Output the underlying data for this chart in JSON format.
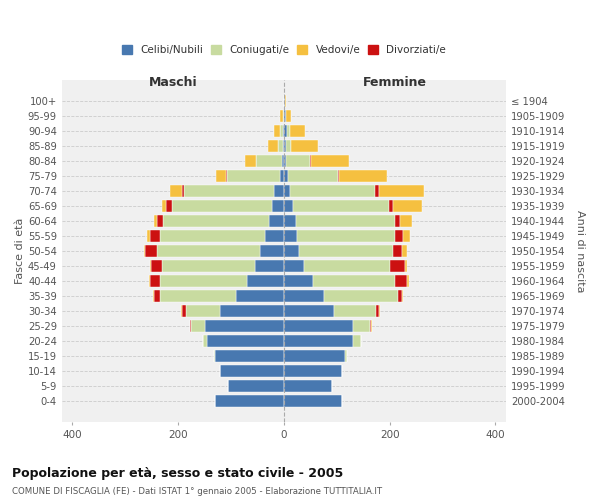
{
  "age_groups": [
    "0-4",
    "5-9",
    "10-14",
    "15-19",
    "20-24",
    "25-29",
    "30-34",
    "35-39",
    "40-44",
    "45-49",
    "50-54",
    "55-59",
    "60-64",
    "65-69",
    "70-74",
    "75-79",
    "80-84",
    "85-89",
    "90-94",
    "95-99",
    "100+"
  ],
  "birth_years": [
    "2000-2004",
    "1995-1999",
    "1990-1994",
    "1985-1989",
    "1980-1984",
    "1975-1979",
    "1970-1974",
    "1965-1969",
    "1960-1964",
    "1955-1959",
    "1950-1954",
    "1945-1949",
    "1940-1944",
    "1935-1939",
    "1930-1934",
    "1925-1929",
    "1920-1924",
    "1915-1919",
    "1910-1914",
    "1905-1909",
    "≤ 1904"
  ],
  "colors": {
    "celibi": "#4878b0",
    "coniugati": "#c8dba0",
    "vedovi": "#f5c040",
    "divorziati": "#cc1111"
  },
  "maschi": {
    "celibi": [
      130,
      105,
      120,
      130,
      145,
      150,
      120,
      90,
      70,
      55,
      45,
      35,
      28,
      22,
      18,
      8,
      4,
      2,
      2,
      0,
      0
    ],
    "coniugati": [
      0,
      0,
      0,
      2,
      8,
      25,
      65,
      145,
      165,
      175,
      195,
      200,
      200,
      190,
      170,
      100,
      48,
      10,
      5,
      2,
      0
    ],
    "vedovi": [
      0,
      0,
      0,
      0,
      0,
      0,
      2,
      2,
      2,
      2,
      3,
      5,
      5,
      8,
      22,
      18,
      22,
      18,
      12,
      5,
      0
    ],
    "divorziati": [
      0,
      0,
      0,
      0,
      0,
      2,
      8,
      10,
      18,
      22,
      22,
      18,
      12,
      10,
      5,
      2,
      0,
      0,
      0,
      0,
      0
    ]
  },
  "femmine": {
    "celibi": [
      110,
      90,
      110,
      115,
      130,
      130,
      95,
      75,
      55,
      38,
      28,
      25,
      22,
      18,
      12,
      8,
      4,
      4,
      6,
      4,
      2
    ],
    "coniugati": [
      0,
      0,
      0,
      5,
      15,
      32,
      80,
      140,
      155,
      162,
      178,
      185,
      188,
      180,
      160,
      95,
      45,
      10,
      5,
      0,
      0
    ],
    "vedovi": [
      0,
      0,
      0,
      0,
      0,
      2,
      2,
      3,
      5,
      5,
      8,
      12,
      22,
      55,
      85,
      90,
      72,
      50,
      28,
      10,
      2
    ],
    "divorziati": [
      0,
      0,
      0,
      0,
      0,
      2,
      5,
      8,
      22,
      28,
      18,
      16,
      10,
      8,
      8,
      2,
      2,
      0,
      0,
      0,
      0
    ]
  },
  "title": "Popolazione per età, sesso e stato civile - 2005",
  "subtitle": "COMUNE DI FISCAGLIA (FE) - Dati ISTAT 1° gennaio 2005 - Elaborazione TUTTITALIA.IT",
  "xlabel_left": "Maschi",
  "xlabel_right": "Femmine",
  "ylabel_left": "Fasce di età",
  "ylabel_right": "Anni di nascita",
  "xlim": 420,
  "legend_labels": [
    "Celibi/Nubili",
    "Coniugati/e",
    "Vedovi/e",
    "Divorziati/e"
  ]
}
